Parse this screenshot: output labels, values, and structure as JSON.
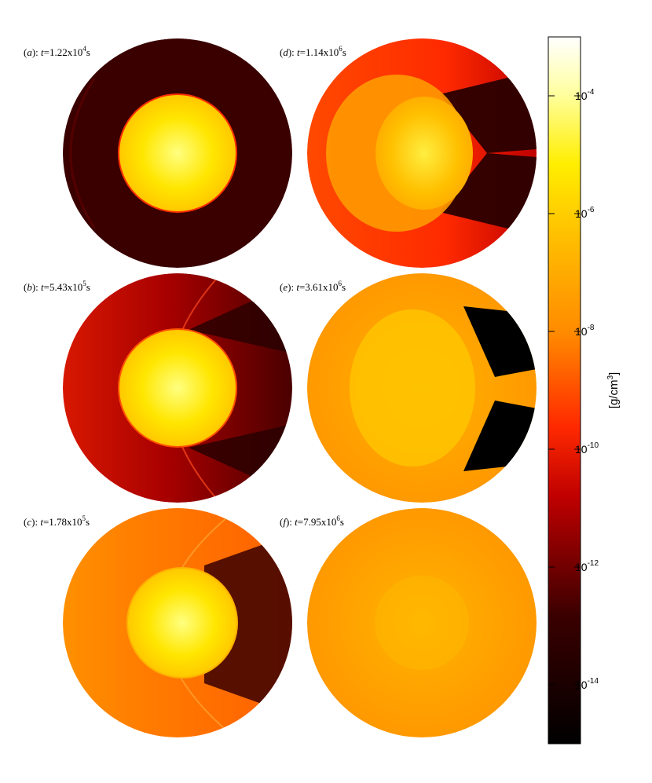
{
  "chart_data": {
    "type": "heatmap",
    "quantity_unit": "[g/cm3]",
    "colormap": "hot (black-red-orange-yellow-white)",
    "colorbar": {
      "scale": "log",
      "range": [
        1e-15,
        0.001
      ],
      "ticks": [
        {
          "value": 0.0001,
          "base": "10",
          "exp": "-4"
        },
        {
          "value": 1e-06,
          "base": "10",
          "exp": "-6"
        },
        {
          "value": 1e-08,
          "base": "10",
          "exp": "-8"
        },
        {
          "value": 1e-10,
          "base": "10",
          "exp": "-10"
        },
        {
          "value": 1e-12,
          "base": "10",
          "exp": "-12"
        },
        {
          "value": 1e-14,
          "base": "10",
          "exp": "-14"
        }
      ],
      "label_main": "[g/cm",
      "label_exp": "3",
      "label_end": "]"
    },
    "panels": [
      {
        "id": "a",
        "letter": "a",
        "t_mant": "1.22",
        "t_exp": "4",
        "unit": "s",
        "background_log_density": -14.3,
        "star_log_density": -6.5
      },
      {
        "id": "b",
        "letter": "b",
        "t_mant": "5.43",
        "t_exp": "5",
        "unit": "s",
        "background_log_density": -12.5,
        "star_log_density": -6.5
      },
      {
        "id": "c",
        "letter": "c",
        "t_mant": "1.78",
        "t_exp": "5",
        "unit": "s",
        "background_log_density": -9.6,
        "star_log_density": -6.5
      },
      {
        "id": "d",
        "letter": "d",
        "t_mant": "1.14",
        "t_exp": "6",
        "unit": "s",
        "background_log_density": -10.5,
        "star_log_density": -8.0
      },
      {
        "id": "e",
        "letter": "e",
        "t_mant": "3.61",
        "t_exp": "6",
        "unit": "s",
        "background_log_density": -9.3,
        "star_log_density": -8.3
      },
      {
        "id": "f",
        "letter": "f",
        "t_mant": "7.95",
        "t_exp": "6",
        "unit": "s",
        "background_log_density": -9.2,
        "star_log_density": -8.6
      }
    ]
  }
}
